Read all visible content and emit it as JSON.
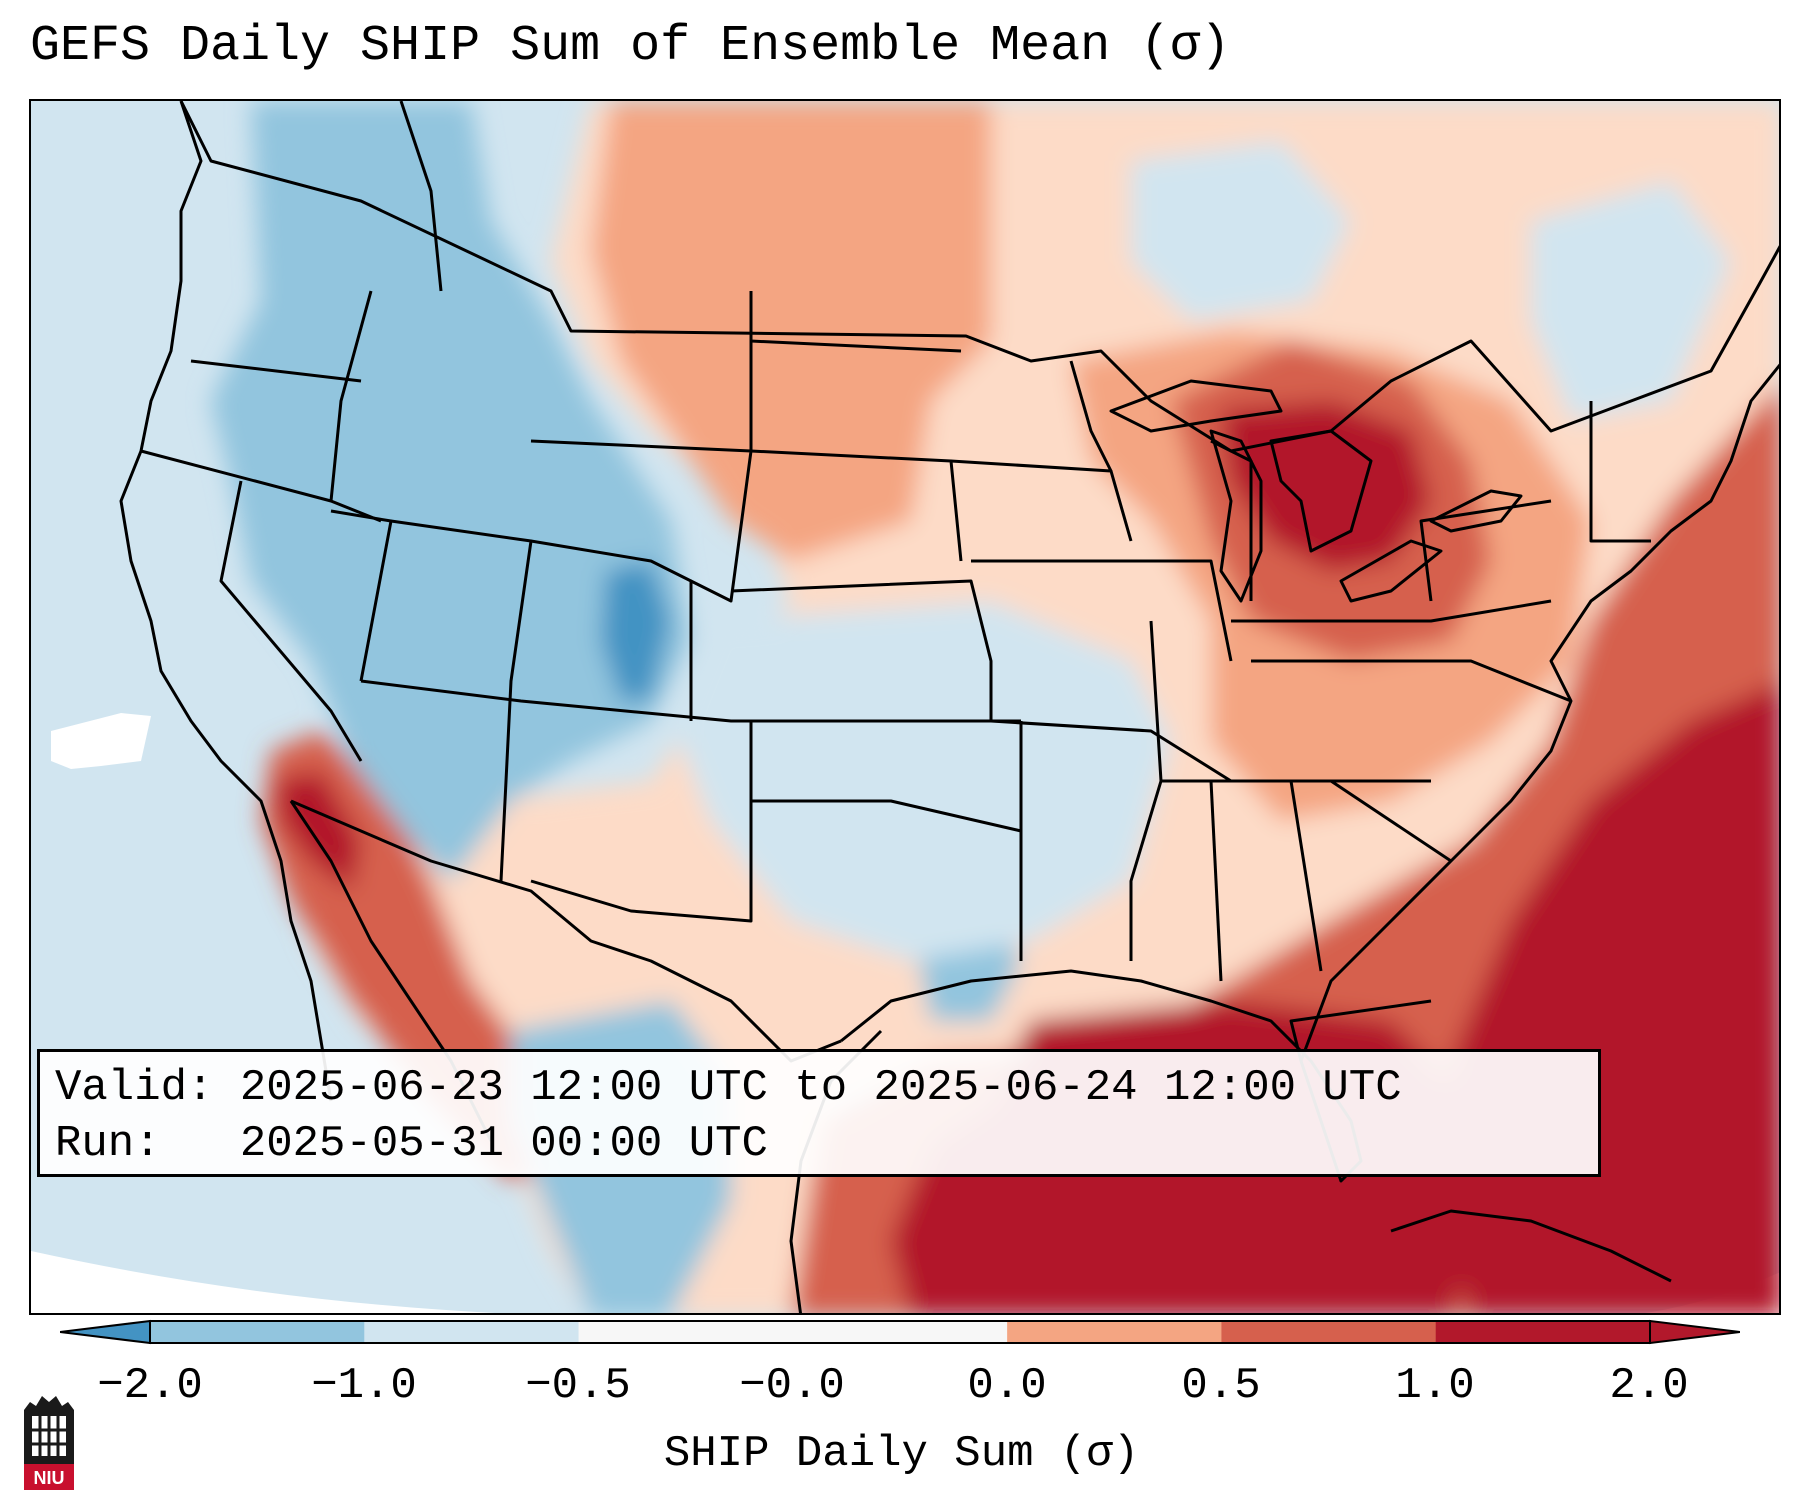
{
  "title": "GEFS Daily SHIP Sum of Ensemble Mean (σ)",
  "info": {
    "valid_line": "Valid: 2025-06-23 12:00 UTC to 2025-06-24 12:00 UTC",
    "run_line": "Run:   2025-05-31 00:00 UTC"
  },
  "colorbar": {
    "label": "SHIP Daily Sum (σ)",
    "tick_labels": [
      "−2.0",
      "−1.0",
      "−0.5",
      "−0.0",
      "0.0",
      "0.5",
      "1.0",
      "2.0"
    ],
    "colors": [
      "#4393c3",
      "#92c5de",
      "#d1e5f0",
      "#f7f7f7",
      "#fddbc7",
      "#f4a582",
      "#d6604d",
      "#b2182b"
    ],
    "extend": "both"
  },
  "map_colors": {
    "dark_red": "#b2182b",
    "red": "#d6604d",
    "salmon": "#f4a582",
    "light_salmon": "#fddbc7",
    "white": "#ffffff",
    "light_blue": "#d1e5f0",
    "blue": "#92c5de",
    "dark_blue": "#4393c3"
  },
  "logo": {
    "text": "NIU",
    "color": "#c8102e"
  }
}
